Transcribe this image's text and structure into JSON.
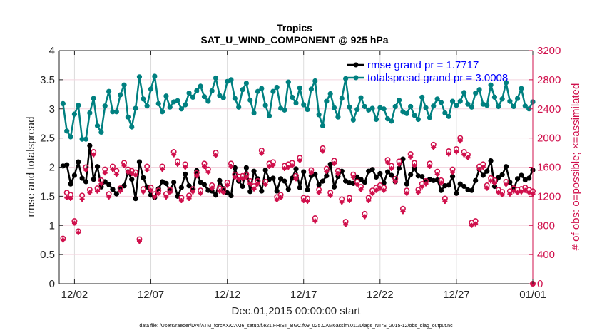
{
  "chart_data": {
    "type": "line",
    "title": "Tropics",
    "subtitle": "SAT_U_WIND_COMPONENT @ 925 hPa",
    "xlabel": "Dec.01,2015 00:00:00 start",
    "ylabel": "rmse and totalspread",
    "ylabel_right": "# of obs: o=possible; ×=assimilated",
    "footnote": "data file: /Users/raeder/DAI/ATM_forcXX/CAM6_setup/f.e21.FHIST_BGC.f09_025.CAM6assim.011/Diags_NTrS_2015-12/obs_diag_output.nc",
    "x_unit": "days since Dec.01,2015 00:00",
    "xlim": [
      0,
      31
    ],
    "x_ticks": [
      1,
      6,
      11,
      16,
      21,
      26,
      31
    ],
    "x_tick_labels": [
      "12/02",
      "12/07",
      "12/12",
      "12/17",
      "12/22",
      "12/27",
      "01/01"
    ],
    "ylim": [
      0,
      4
    ],
    "y_ticks": [
      0,
      0.5,
      1,
      1.5,
      2,
      2.5,
      3,
      3.5,
      4
    ],
    "y_tick_labels": [
      "0",
      "0.5",
      "1",
      "1.5",
      "2",
      "2.5",
      "3",
      "3.5",
      "4"
    ],
    "ylim_right": [
      0,
      3200
    ],
    "y_ticks_right": [
      0,
      400,
      800,
      1200,
      1600,
      2000,
      2400,
      2800,
      3200
    ],
    "y_tick_labels_right": [
      "0",
      "400",
      "800",
      "1200",
      "1600",
      "2000",
      "2400",
      "2800",
      "3200"
    ],
    "grid": "on",
    "legend_position": "top-right",
    "legend": [
      {
        "label": "rmse grand pr = 1.7717",
        "color": "#000000"
      },
      {
        "label": "totalspread grand pr = 3.0008",
        "color": "#008080"
      }
    ],
    "x_start": 0.25,
    "x_step": 0.25,
    "series": [
      {
        "name": "totalspread",
        "axis": "left",
        "color": "#008080",
        "values": [
          3.09,
          2.62,
          2.52,
          2.91,
          3.06,
          2.48,
          2.48,
          2.93,
          3.18,
          2.71,
          2.6,
          3.05,
          3.3,
          2.95,
          2.95,
          3.24,
          3.41,
          2.86,
          2.69,
          3.01,
          3.55,
          3.17,
          3.05,
          3.34,
          3.56,
          3.09,
          2.95,
          3.22,
          3.03,
          3.12,
          3.14,
          3.0,
          3.07,
          3.27,
          3.2,
          3.31,
          3.39,
          3.21,
          3.13,
          3.31,
          3.53,
          3.23,
          3.19,
          3.47,
          3.5,
          3.18,
          3.03,
          3.33,
          3.44,
          3.15,
          2.93,
          3.3,
          3.35,
          3.06,
          2.88,
          3.3,
          3.37,
          3.01,
          2.98,
          3.46,
          3.2,
          3.1,
          3.36,
          3.07,
          2.99,
          3.34,
          3.48,
          2.9,
          2.71,
          3.13,
          3.26,
          3.02,
          2.86,
          3.18,
          3.52,
          3.03,
          2.81,
          2.99,
          3.19,
          3.04,
          2.98,
          3.01,
          2.82,
          3.02,
          3.0,
          2.83,
          2.79,
          3.04,
          3.15,
          2.95,
          2.92,
          3.04,
          2.89,
          2.82,
          3.2,
          3.02,
          2.85,
          3.05,
          3.17,
          3.11,
          2.93,
          2.87,
          3.13,
          3.06,
          3.13,
          3.28,
          3.08,
          3.03,
          3.27,
          3.33,
          3.08,
          3.06,
          3.41,
          3.2,
          3.04,
          3.17,
          3.45,
          3.13,
          3.04,
          3.18,
          3.35,
          3.05,
          3.0,
          3.12
        ]
      },
      {
        "name": "rmse",
        "axis": "left",
        "color": "#000000",
        "values": [
          2.02,
          2.04,
          1.71,
          1.86,
          2.09,
          1.81,
          1.75,
          2.37,
          1.79,
          2.01,
          1.66,
          1.75,
          1.7,
          1.62,
          1.54,
          1.63,
          1.68,
          1.92,
          1.79,
          1.46,
          2.09,
          1.82,
          1.66,
          1.52,
          1.48,
          1.63,
          1.75,
          1.72,
          1.59,
          1.74,
          1.5,
          1.65,
          1.88,
          1.68,
          1.6,
          1.94,
          1.74,
          1.7,
          1.6,
          1.59,
          1.52,
          1.77,
          1.63,
          1.56,
          1.51,
          1.99,
          1.76,
          1.67,
          1.99,
          1.58,
          1.93,
          1.8,
          1.59,
          1.95,
          1.79,
          1.81,
          1.59,
          1.8,
          1.76,
          1.62,
          1.81,
          1.97,
          1.65,
          1.92,
          1.61,
          1.85,
          1.88,
          1.7,
          1.76,
          1.85,
          2.05,
          1.66,
          1.84,
          1.93,
          1.76,
          1.73,
          1.72,
          1.83,
          1.79,
          1.74,
          1.93,
          1.96,
          1.83,
          1.89,
          1.73,
          1.92,
          1.86,
          1.75,
          1.98,
          2.14,
          1.71,
          1.87,
          1.98,
          1.85,
          1.84,
          1.75,
          1.79,
          1.77,
          1.78,
          1.6,
          1.68,
          1.69,
          1.84,
          1.55,
          1.71,
          1.67,
          1.61,
          1.6,
          1.77,
          1.96,
          1.86,
          1.93,
          2.11,
          1.67,
          1.82,
          1.87,
          2.01,
          1.74,
          1.62,
          1.8,
          1.86,
          1.78,
          1.81,
          1.95
        ]
      },
      {
        "name": "obs possible",
        "axis": "right",
        "color": "#d0104c",
        "marker": "o",
        "values": [
          620,
          1250,
          1220,
          860,
          720,
          1210,
          1600,
          1290,
          1810,
          1310,
          1420,
          1570,
          1230,
          1610,
          1550,
          1310,
          1660,
          1570,
          1550,
          1530,
          610,
          1300,
          1610,
          1320,
          1230,
          1280,
          1610,
          1230,
          1290,
          1810,
          1680,
          1180,
          1640,
          1210,
          1300,
          1520,
          1280,
          1650,
          1570,
          1350,
          1800,
          1310,
          1290,
          1390,
          1650,
          1500,
          1470,
          1480,
          1500,
          1410,
          1340,
          1410,
          1830,
          1400,
          1650,
          1670,
          1190,
          1220,
          1620,
          1640,
          1660,
          1480,
          1730,
          1180,
          1170,
          1560,
          900,
          1290,
          1860,
          1580,
          1250,
          1690,
          1550,
          1160,
          850,
          1180,
          1500,
          1400,
          1330,
          960,
          1180,
          1280,
          1320,
          1350,
          1320,
          1700,
          1620,
          1440,
          1680,
          1030,
          1280,
          1780,
          1660,
          1290,
          1370,
          1410,
          1650,
          1910,
          1540,
          1420,
          1170,
          1820,
          1570,
          1850,
          2000,
          1810,
          1770,
          840,
          860,
          1610,
          1640,
          1350,
          1450,
          1420,
          1290,
          1260,
          1400,
          1270,
          1310,
          1290,
          1300,
          1320,
          1290,
          1270
        ]
      },
      {
        "name": "obs assimilated",
        "axis": "right",
        "color": "#d0104c",
        "marker": "x",
        "values": [
          600,
          1180,
          1170,
          830,
          700,
          1160,
          1560,
          1250,
          1770,
          1270,
          1370,
          1520,
          1190,
          1570,
          1500,
          1270,
          1620,
          1530,
          1510,
          1490,
          580,
          1260,
          1560,
          1280,
          1190,
          1240,
          1570,
          1190,
          1250,
          1770,
          1640,
          1140,
          1600,
          1170,
          1260,
          1480,
          1240,
          1610,
          1530,
          1310,
          1760,
          1270,
          1250,
          1350,
          1610,
          1460,
          1430,
          1440,
          1460,
          1370,
          1300,
          1370,
          1790,
          1360,
          1610,
          1630,
          1150,
          1180,
          1580,
          1600,
          1620,
          1440,
          1690,
          1140,
          1130,
          1520,
          860,
          1250,
          1820,
          1540,
          1210,
          1650,
          1510,
          1120,
          810,
          1140,
          1460,
          1360,
          1290,
          920,
          1140,
          1240,
          1280,
          1310,
          1280,
          1660,
          1580,
          1400,
          1640,
          990,
          1240,
          1740,
          1620,
          1250,
          1330,
          1370,
          1610,
          1870,
          1500,
          1380,
          1130,
          1780,
          1530,
          1810,
          1960,
          1770,
          1730,
          800,
          820,
          1570,
          1600,
          1310,
          1410,
          1380,
          1250,
          1220,
          1360,
          1230,
          1270,
          1250,
          1260,
          1280,
          1250,
          1230
        ]
      }
    ],
    "end_marker": {
      "x": 31,
      "value_right": 0
    }
  }
}
